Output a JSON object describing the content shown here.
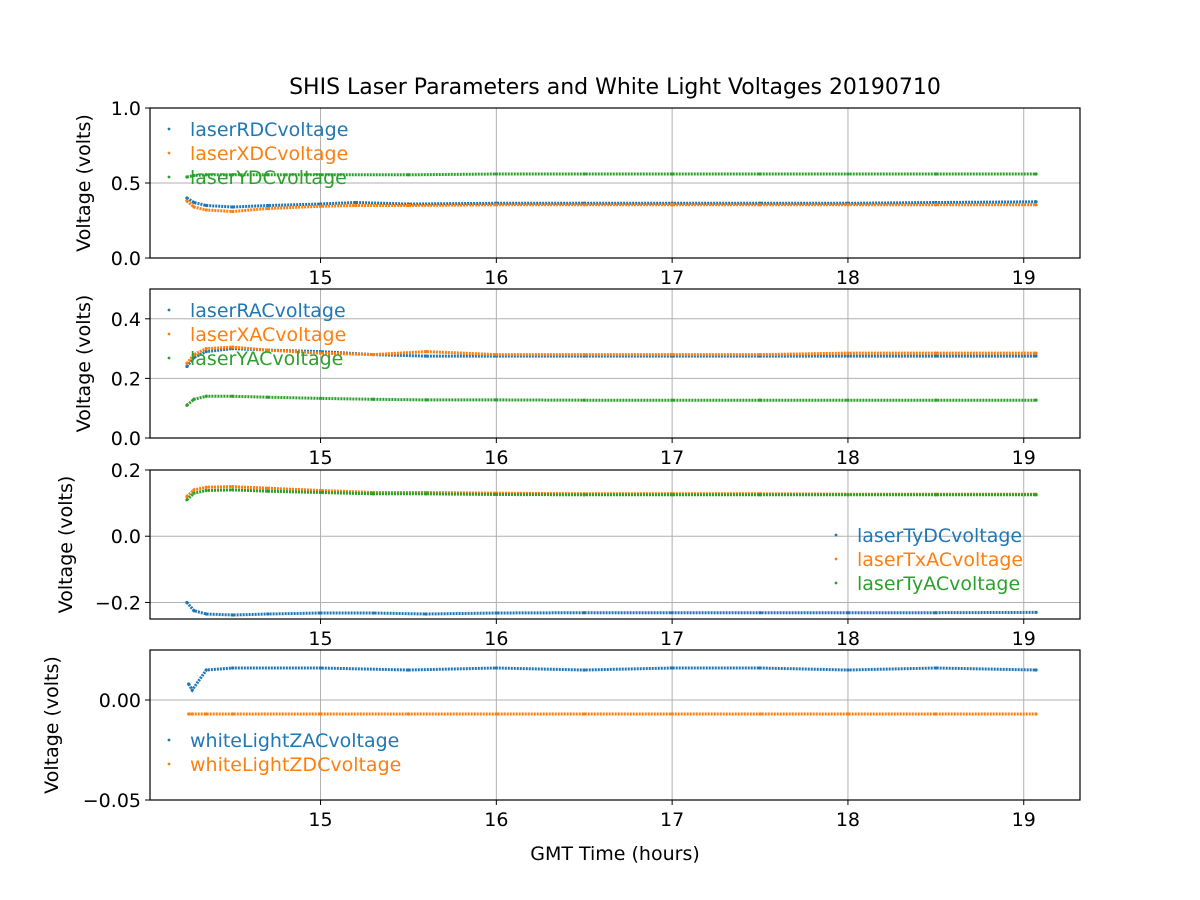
{
  "figure": {
    "title": "SHIS Laser Parameters and White Light Voltages 20190710",
    "xlabel": "GMT Time (hours)"
  },
  "chart_data": [
    {
      "type": "scatter",
      "ylabel": "Voltage (volts)",
      "xlim": [
        14.03,
        19.32
      ],
      "ylim": [
        0.0,
        1.0
      ],
      "xticks": [
        15,
        16,
        17,
        18,
        19
      ],
      "xtick_labels": [
        "15",
        "16",
        "17",
        "18",
        "19"
      ],
      "yticks": [
        0.0,
        0.5,
        1.0
      ],
      "ytick_labels": [
        "0.0",
        "0.5",
        "1.0"
      ],
      "grid": true,
      "legend_position": "upper left",
      "series": [
        {
          "name": "laserRDCvoltage",
          "color": "#1f77b4",
          "x": [
            14.24,
            14.28,
            14.35,
            14.5,
            14.7,
            15.0,
            15.2,
            15.5,
            16.0,
            16.5,
            17.0,
            17.5,
            18.0,
            18.5,
            19.07
          ],
          "y": [
            0.4,
            0.37,
            0.35,
            0.34,
            0.35,
            0.36,
            0.37,
            0.36,
            0.365,
            0.365,
            0.365,
            0.365,
            0.365,
            0.37,
            0.375
          ]
        },
        {
          "name": "laserXDCvoltage",
          "color": "#ff7f0e",
          "x": [
            14.24,
            14.28,
            14.35,
            14.5,
            14.7,
            15.0,
            15.2,
            15.5,
            16.0,
            16.5,
            17.0,
            17.5,
            18.0,
            18.5,
            19.07
          ],
          "y": [
            0.38,
            0.34,
            0.32,
            0.31,
            0.33,
            0.345,
            0.35,
            0.35,
            0.355,
            0.355,
            0.355,
            0.355,
            0.355,
            0.355,
            0.355
          ]
        },
        {
          "name": "laserYDCvoltage",
          "color": "#2ca02c",
          "x": [
            14.24,
            14.28,
            14.35,
            14.5,
            14.7,
            15.0,
            15.5,
            16.0,
            16.5,
            17.0,
            17.5,
            18.0,
            18.5,
            19.07
          ],
          "y": [
            0.54,
            0.55,
            0.555,
            0.555,
            0.555,
            0.555,
            0.555,
            0.56,
            0.56,
            0.56,
            0.56,
            0.56,
            0.56,
            0.56
          ]
        }
      ]
    },
    {
      "type": "scatter",
      "ylabel": "Voltage (volts)",
      "xlim": [
        14.03,
        19.32
      ],
      "ylim": [
        0.0,
        0.5
      ],
      "xticks": [
        15,
        16,
        17,
        18,
        19
      ],
      "xtick_labels": [
        "15",
        "16",
        "17",
        "18",
        "19"
      ],
      "yticks": [
        0.0,
        0.2,
        0.4
      ],
      "ytick_labels": [
        "0.0",
        "0.2",
        "0.4"
      ],
      "grid": true,
      "legend_position": "upper left",
      "series": [
        {
          "name": "laserRACvoltage",
          "color": "#1f77b4",
          "x": [
            14.24,
            14.28,
            14.35,
            14.5,
            14.7,
            15.0,
            15.3,
            15.6,
            16.0,
            16.5,
            17.0,
            17.5,
            18.0,
            18.5,
            19.07
          ],
          "y": [
            0.24,
            0.27,
            0.29,
            0.3,
            0.295,
            0.29,
            0.28,
            0.275,
            0.275,
            0.275,
            0.275,
            0.275,
            0.275,
            0.275,
            0.275
          ]
        },
        {
          "name": "laserXACvoltage",
          "color": "#ff7f0e",
          "x": [
            14.24,
            14.28,
            14.35,
            14.5,
            14.7,
            15.0,
            15.3,
            15.6,
            16.0,
            16.5,
            17.0,
            17.5,
            18.0,
            18.5,
            19.07
          ],
          "y": [
            0.25,
            0.28,
            0.3,
            0.305,
            0.295,
            0.285,
            0.28,
            0.29,
            0.28,
            0.28,
            0.28,
            0.28,
            0.285,
            0.285,
            0.285
          ]
        },
        {
          "name": "laserYACvoltage",
          "color": "#2ca02c",
          "x": [
            14.24,
            14.28,
            14.35,
            14.5,
            14.7,
            15.0,
            15.3,
            15.6,
            16.0,
            16.5,
            17.0,
            17.5,
            18.0,
            18.5,
            19.07
          ],
          "y": [
            0.11,
            0.13,
            0.14,
            0.14,
            0.137,
            0.133,
            0.13,
            0.128,
            0.128,
            0.127,
            0.127,
            0.127,
            0.127,
            0.127,
            0.127
          ]
        }
      ]
    },
    {
      "type": "scatter",
      "ylabel": "Voltage (volts)",
      "xlim": [
        14.03,
        19.32
      ],
      "ylim": [
        -0.25,
        0.2
      ],
      "xticks": [
        15,
        16,
        17,
        18,
        19
      ],
      "xtick_labels": [
        "15",
        "16",
        "17",
        "18",
        "19"
      ],
      "yticks": [
        -0.2,
        0.0,
        0.2
      ],
      "ytick_labels": [
        "−0.2",
        "0.0",
        "0.2"
      ],
      "grid": true,
      "legend_position": "center right",
      "series": [
        {
          "name": "laserTyDCvoltage",
          "color": "#1f77b4",
          "x": [
            14.24,
            14.28,
            14.35,
            14.5,
            14.7,
            15.0,
            15.3,
            15.6,
            16.0,
            16.5,
            17.0,
            17.5,
            18.0,
            18.5,
            19.07
          ],
          "y": [
            -0.2,
            -0.225,
            -0.235,
            -0.238,
            -0.235,
            -0.232,
            -0.232,
            -0.235,
            -0.232,
            -0.231,
            -0.231,
            -0.231,
            -0.231,
            -0.231,
            -0.23
          ]
        },
        {
          "name": "laserTxACvoltage",
          "color": "#ff7f0e",
          "x": [
            14.24,
            14.28,
            14.35,
            14.5,
            14.7,
            15.0,
            15.3,
            15.6,
            16.0,
            16.5,
            17.0,
            17.5,
            18.0,
            18.5,
            19.07
          ],
          "y": [
            0.12,
            0.14,
            0.148,
            0.15,
            0.145,
            0.138,
            0.132,
            0.132,
            0.13,
            0.128,
            0.128,
            0.128,
            0.127,
            0.127,
            0.127
          ]
        },
        {
          "name": "laserTyACvoltage",
          "color": "#2ca02c",
          "x": [
            14.24,
            14.28,
            14.35,
            14.5,
            14.7,
            15.0,
            15.3,
            15.6,
            16.0,
            16.5,
            17.0,
            17.5,
            18.0,
            18.5,
            19.07
          ],
          "y": [
            0.11,
            0.13,
            0.138,
            0.14,
            0.136,
            0.132,
            0.128,
            0.128,
            0.126,
            0.125,
            0.125,
            0.125,
            0.125,
            0.125,
            0.125
          ]
        }
      ]
    },
    {
      "type": "scatter",
      "ylabel": "Voltage (volts)",
      "xlim": [
        14.03,
        19.32
      ],
      "ylim": [
        -0.05,
        0.025
      ],
      "xticks": [
        15,
        16,
        17,
        18,
        19
      ],
      "xtick_labels": [
        "15",
        "16",
        "17",
        "18",
        "19"
      ],
      "yticks": [
        -0.05,
        0.0
      ],
      "ytick_labels": [
        "−0.05",
        "0.00"
      ],
      "grid": true,
      "legend_position": "lower left",
      "series": [
        {
          "name": "whiteLightZACvoltage",
          "color": "#1f77b4",
          "x": [
            14.25,
            14.27,
            14.35,
            14.5,
            15.0,
            15.5,
            16.0,
            16.5,
            17.0,
            17.5,
            18.0,
            18.5,
            19.07
          ],
          "y": [
            0.008,
            0.005,
            0.015,
            0.016,
            0.016,
            0.015,
            0.016,
            0.015,
            0.016,
            0.016,
            0.015,
            0.016,
            0.015
          ]
        },
        {
          "name": "whiteLightZDCvoltage",
          "color": "#ff7f0e",
          "x": [
            14.25,
            14.27,
            14.35,
            14.5,
            15.0,
            15.5,
            16.0,
            16.5,
            17.0,
            17.5,
            18.0,
            18.5,
            19.07
          ],
          "y": [
            -0.007,
            -0.007,
            -0.007,
            -0.007,
            -0.007,
            -0.007,
            -0.007,
            -0.007,
            -0.007,
            -0.007,
            -0.007,
            -0.007,
            -0.007
          ]
        }
      ]
    }
  ]
}
